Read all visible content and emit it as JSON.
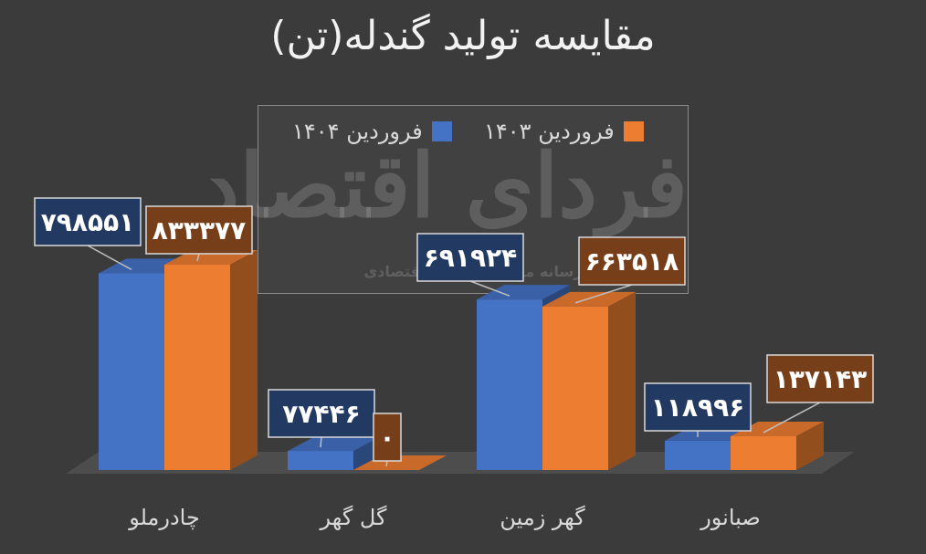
{
  "chart_data": {
    "type": "bar",
    "title": "مقایسه تولید گندله(تن)",
    "categories": [
      "چادرملو",
      "گل گهر",
      "گهر زمین",
      "صبانور"
    ],
    "series": [
      {
        "name": "فروردین ۱۴۰۴",
        "values": [
          798551,
          77446,
          691924,
          118996
        ],
        "labels": [
          "۷۹۸۵۵۱",
          "۷۷۴۴۶",
          "۶۹۱۹۲۴",
          "۱۱۸۹۹۶"
        ],
        "color": "#4472c4"
      },
      {
        "name": "فروردین ۱۴۰۳",
        "values": [
          833377,
          0,
          663518,
          137143
        ],
        "labels": [
          "۸۳۳۳۷۷",
          "۰",
          "۶۶۳۵۱۸",
          "۱۳۷۱۴۳"
        ],
        "color": "#ed7d31"
      }
    ],
    "ylim": [
      0,
      1000000
    ],
    "legend": "top-center",
    "grid": false
  },
  "watermark": {
    "main": "فردای اقتصاد",
    "sub": "رسانه مرجع روندهای اقتصادی"
  }
}
